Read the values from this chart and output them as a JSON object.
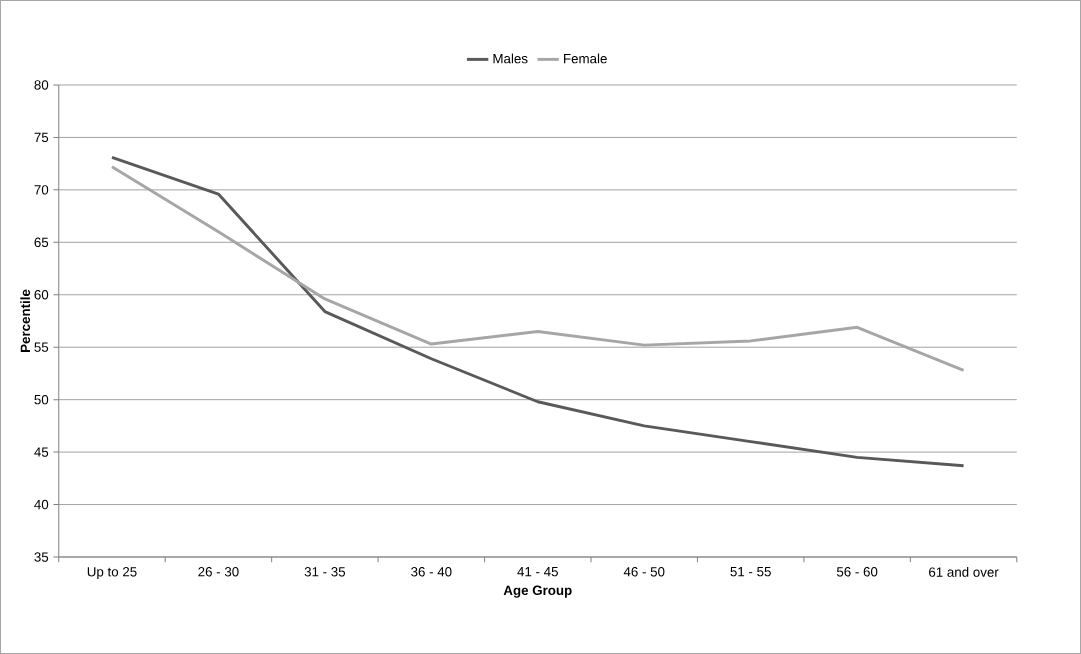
{
  "chart_data": {
    "type": "line",
    "xlabel": "Age Group",
    "ylabel": "Percentile",
    "categories": [
      "Up to 25",
      "26 - 30",
      "31 - 35",
      "36 - 40",
      "41 - 45",
      "46 - 50",
      "51 - 55",
      "56 - 60",
      "61 and over"
    ],
    "series": [
      {
        "name": "Males",
        "color": "#595959",
        "values": [
          73.1,
          69.6,
          58.4,
          53.9,
          49.8,
          47.5,
          46.0,
          44.5,
          43.7
        ]
      },
      {
        "name": "Female",
        "color": "#a6a6a6",
        "values": [
          72.2,
          66.0,
          59.6,
          55.3,
          56.5,
          55.2,
          55.6,
          56.9,
          52.8
        ]
      }
    ],
    "ylim": [
      35,
      80
    ],
    "yticks": [
      35,
      40,
      45,
      50,
      55,
      60,
      65,
      70,
      75,
      80
    ],
    "grid": "y",
    "legend": "top",
    "marker": "none",
    "line_style": "solid"
  }
}
